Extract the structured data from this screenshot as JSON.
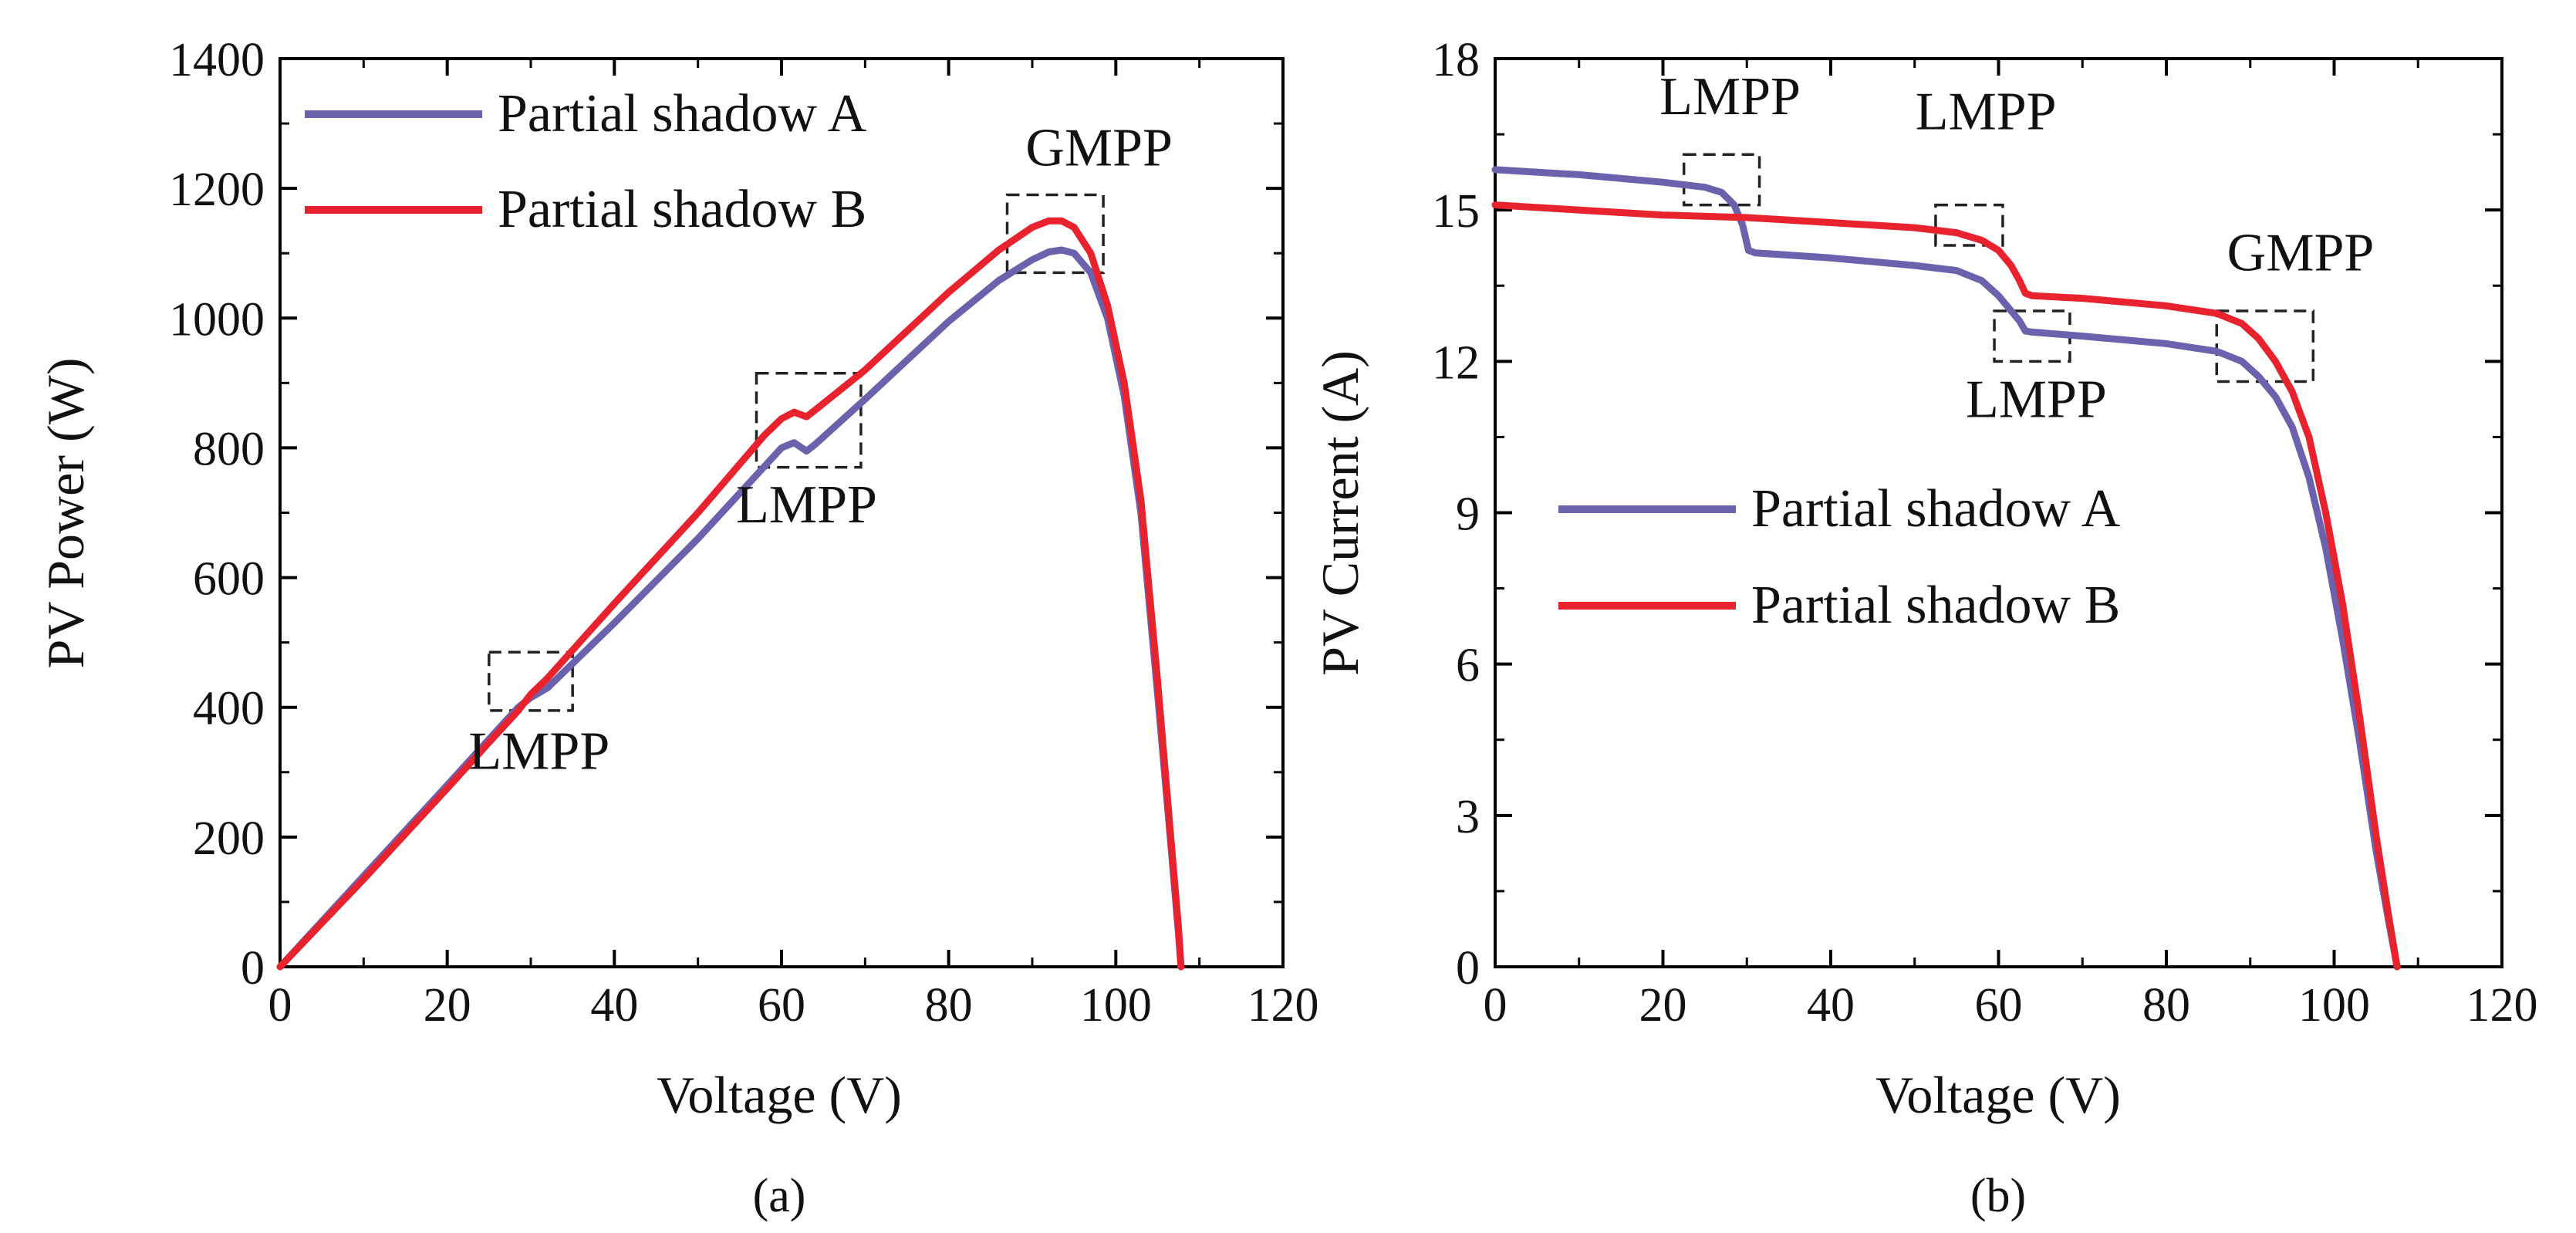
{
  "chart_data": [
    {
      "id": "a",
      "type": "line",
      "caption": "(a)",
      "xlabel": "Voltage (V)",
      "ylabel": "PV Power (W)",
      "xlim": [
        0,
        120
      ],
      "ylim": [
        0,
        1400
      ],
      "xticks": [
        0,
        20,
        40,
        60,
        80,
        100,
        120
      ],
      "yticks": [
        0,
        200,
        400,
        600,
        800,
        1000,
        1200,
        1400
      ],
      "legend_position": "top-left",
      "series": [
        {
          "name": "Partial shadow A",
          "color": "#6b62ad",
          "x": [
            0,
            10,
            20,
            26,
            28.5,
            30,
            32,
            40,
            50,
            58,
            60,
            61.5,
            63,
            64,
            70,
            80,
            86,
            90,
            92,
            93.5,
            95,
            97,
            99,
            101,
            103,
            105,
            106.5,
            107.5,
            107.8
          ],
          "y": [
            0,
            140,
            280,
            365,
            400,
            415,
            430,
            530,
            660,
            772,
            800,
            808,
            795,
            805,
            875,
            995,
            1058,
            1090,
            1102,
            1105,
            1100,
            1070,
            1000,
            880,
            700,
            420,
            200,
            50,
            0
          ]
        },
        {
          "name": "Partial shadow B",
          "color": "#e8232e",
          "x": [
            0,
            10,
            20,
            26,
            28.5,
            30,
            32,
            40,
            50,
            58,
            60,
            61.5,
            63,
            64,
            70,
            80,
            86,
            90,
            92,
            93.5,
            95,
            97,
            99,
            101,
            103,
            105,
            106.5,
            107.5,
            107.8
          ],
          "y": [
            0,
            135,
            275,
            360,
            395,
            420,
            445,
            560,
            700,
            820,
            845,
            855,
            848,
            858,
            920,
            1040,
            1105,
            1140,
            1150,
            1150,
            1140,
            1100,
            1020,
            900,
            720,
            440,
            210,
            60,
            0
          ]
        }
      ],
      "annotations": [
        {
          "label": "LMPP",
          "box_x": [
            25,
            35
          ],
          "box_y": [
            395,
            485
          ],
          "text_x": 31,
          "text_y": 305
        },
        {
          "label": "LMPP",
          "box_x": [
            57,
            69.5
          ],
          "box_y": [
            770,
            915
          ],
          "text_x": 63,
          "text_y": 685
        },
        {
          "label": "GMPP",
          "box_x": [
            87,
            98.5
          ],
          "box_y": [
            1070,
            1190
          ],
          "text_x": 98,
          "text_y": 1235
        }
      ]
    },
    {
      "id": "b",
      "type": "line",
      "caption": "(b)",
      "xlabel": "Voltage (V)",
      "ylabel": "PV Current (A)",
      "xlim": [
        0,
        120
      ],
      "ylim": [
        0,
        18
      ],
      "xticks": [
        0,
        20,
        40,
        60,
        80,
        100,
        120
      ],
      "yticks": [
        0,
        3,
        6,
        9,
        12,
        15,
        18
      ],
      "legend_position": "center-left",
      "series": [
        {
          "name": "Partial shadow A",
          "color": "#6b62ad",
          "x": [
            0,
            10,
            20,
            25,
            27,
            28.5,
            29.5,
            30.2,
            31,
            40,
            50,
            55,
            58,
            60,
            61.5,
            62.5,
            63.2,
            64,
            70,
            80,
            86,
            89,
            91,
            93,
            95,
            97,
            99,
            101,
            103,
            105,
            106.5,
            107.5
          ],
          "y": [
            15.8,
            15.7,
            15.55,
            15.45,
            15.35,
            15.1,
            14.7,
            14.2,
            14.15,
            14.05,
            13.9,
            13.8,
            13.6,
            13.3,
            13.0,
            12.8,
            12.6,
            12.58,
            12.5,
            12.35,
            12.2,
            12.0,
            11.7,
            11.3,
            10.7,
            9.7,
            8.3,
            6.5,
            4.5,
            2.3,
            0.9,
            0
          ]
        },
        {
          "name": "Partial shadow B",
          "color": "#e8232e",
          "x": [
            0,
            10,
            20,
            30,
            40,
            50,
            55,
            58,
            60,
            61.5,
            62.5,
            63.2,
            64,
            70,
            80,
            86,
            89,
            91,
            93,
            95,
            97,
            99,
            101,
            103,
            105,
            106.5,
            107.5
          ],
          "y": [
            15.1,
            15.0,
            14.9,
            14.85,
            14.75,
            14.65,
            14.55,
            14.4,
            14.2,
            13.9,
            13.6,
            13.35,
            13.3,
            13.25,
            13.1,
            12.95,
            12.75,
            12.45,
            12.0,
            11.4,
            10.5,
            9.0,
            7.2,
            5.0,
            2.6,
            1.0,
            0
          ]
        }
      ],
      "annotations": [
        {
          "label": "LMPP",
          "box_x": [
            22.5,
            31.5
          ],
          "box_y": [
            15.1,
            16.1
          ],
          "text_x": 28,
          "text_y": 16.9
        },
        {
          "label": "LMPP",
          "box_x": [
            52.5,
            60.5
          ],
          "box_y": [
            14.3,
            15.1
          ],
          "text_x": 58.5,
          "text_y": 16.6
        },
        {
          "label": "LMPP",
          "box_x": [
            59.5,
            68.5
          ],
          "box_y": [
            12.0,
            13.0
          ],
          "text_x": 64.5,
          "text_y": 10.9
        },
        {
          "label": "GMPP",
          "box_x": [
            86,
            97.5
          ],
          "box_y": [
            11.6,
            13.0
          ],
          "text_x": 96,
          "text_y": 13.8
        }
      ]
    }
  ]
}
